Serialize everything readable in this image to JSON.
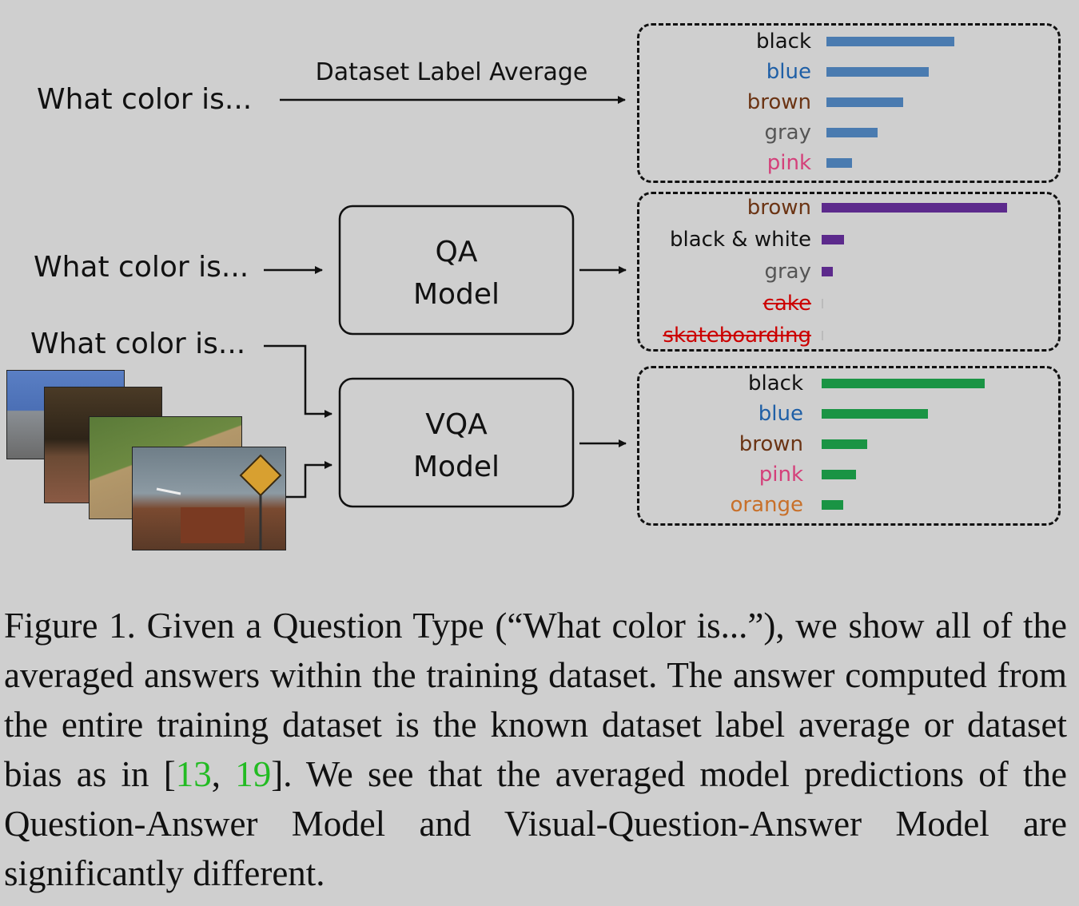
{
  "questions": {
    "q1": "What color is...",
    "q2": "What color is...",
    "q3": "What color is..."
  },
  "top_arrow_label": "Dataset Label Average",
  "qa_box": {
    "line1": "QA",
    "line2": "Model"
  },
  "vqa_box": {
    "line1": "VQA",
    "line2": "Model"
  },
  "colors": {
    "dataset_bar": "#4a7bb0",
    "qa_bar": "#5c2a8c",
    "vqa_bar": "#1a9444",
    "black": "#111111",
    "blue": "#1f5fa6",
    "brown": "#6b3414",
    "gray": "#555555",
    "pink": "#d4407a",
    "orange": "#c8702a",
    "red": "#cc0000"
  },
  "chart_data": [
    {
      "type": "bar",
      "title": "Dataset Label Average",
      "orientation": "horizontal",
      "categories": [
        "black",
        "blue",
        "brown",
        "gray",
        "pink"
      ],
      "values": [
        100,
        80,
        60,
        40,
        20
      ],
      "label_colors": [
        "black",
        "blue",
        "brown",
        "gray",
        "pink"
      ],
      "bar_color": "dataset_bar",
      "strikethrough": [
        false,
        false,
        false,
        false,
        false
      ],
      "xlim": [
        0,
        100
      ]
    },
    {
      "type": "bar",
      "title": "QA Model",
      "orientation": "horizontal",
      "categories": [
        "brown",
        "black & white",
        "gray",
        "cake",
        "skateboarding"
      ],
      "values": [
        100,
        12,
        6,
        0.5,
        0.5
      ],
      "label_colors": [
        "brown",
        "black",
        "gray",
        "red",
        "red"
      ],
      "bar_color": "qa_bar",
      "strikethrough": [
        false,
        false,
        false,
        true,
        true
      ],
      "xlim": [
        0,
        100
      ]
    },
    {
      "type": "bar",
      "title": "VQA Model",
      "orientation": "horizontal",
      "categories": [
        "black",
        "blue",
        "brown",
        "pink",
        "orange"
      ],
      "values": [
        100,
        65,
        28,
        21,
        13
      ],
      "label_colors": [
        "black",
        "blue",
        "brown",
        "pink",
        "orange"
      ],
      "bar_color": "vqa_bar",
      "strikethrough": [
        false,
        false,
        false,
        false,
        false
      ],
      "xlim": [
        0,
        100
      ]
    }
  ],
  "caption": {
    "before_ref1": "Figure 1. Given a Question Type (“What color is...”), we show all of the averaged answers within the training dataset. The answer computed from the entire training dataset is the known dataset label average or dataset bias as in [",
    "ref1": "13",
    "between_refs": ", ",
    "ref2": "19",
    "after_ref2": "]. We see that the averaged model predictions of the Question-Answer Model and Visual-Question-Answer Model are significantly different."
  }
}
